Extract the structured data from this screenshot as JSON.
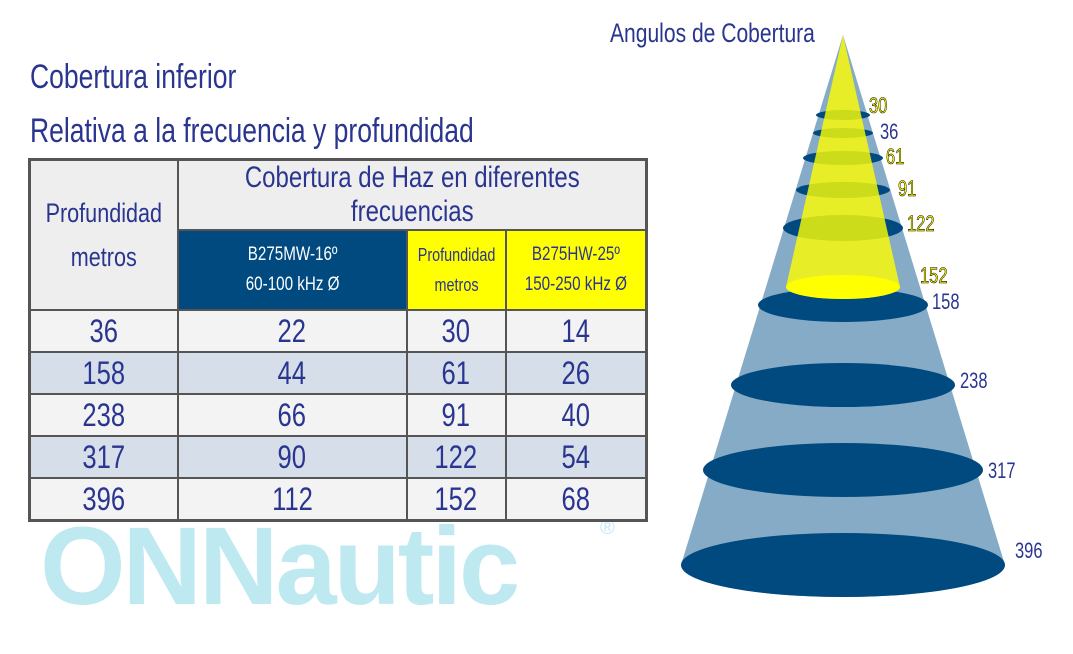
{
  "title_line1": "Cobertura inferior",
  "title_line2": "Relativa a la frecuencia y profundidad",
  "watermark": "ONNautic",
  "watermark_mark": "®",
  "table": {
    "header_depth": "Profundidad metros",
    "header_span": "Cobertura de Haz en diferentes frecuencias",
    "col_mw_line1": "B275MW-16º",
    "col_mw_line2": "60-100 kHz  Ø",
    "col_depth2": "Profundidad metros",
    "col_hw_line1": "B275HW-25º",
    "col_hw_line2": "150-250 kHz  Ø",
    "rows": [
      [
        "36",
        "22",
        "30",
        "14"
      ],
      [
        "158",
        "44",
        "61",
        "26"
      ],
      [
        "238",
        "66",
        "91",
        "40"
      ],
      [
        "317",
        "90",
        "122",
        "54"
      ],
      [
        "396",
        "112",
        "152",
        "68"
      ]
    ]
  },
  "cone": {
    "title": "Angulos de Cobertura",
    "yellow_labels": [
      "30",
      "61",
      "91",
      "122",
      "152"
    ],
    "blue_labels": [
      "36",
      "158",
      "238",
      "317",
      "396"
    ],
    "colors": {
      "dark": "#004a80",
      "light": "#7fa6c4",
      "yellow": "#ffff00"
    }
  }
}
